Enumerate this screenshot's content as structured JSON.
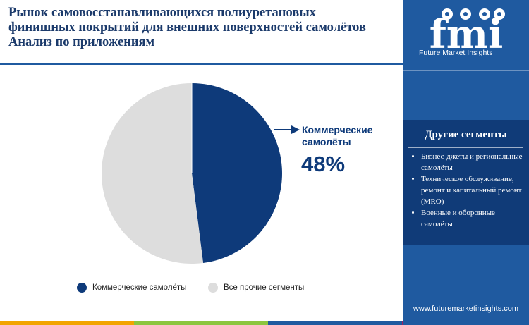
{
  "title": {
    "line1": "Рынок самовосстанавливающихся полиуретановых",
    "line2": "финишных покрытий для внешних поверхностей самолётов",
    "line3": "Анализ по приложениям"
  },
  "chart_data": {
    "type": "pie",
    "slices": [
      {
        "name": "Коммерческие самолёты",
        "value": 48,
        "color": "#0e3a7a"
      },
      {
        "name": "Все прочие сегменты",
        "value": 52,
        "color": "#dddddd"
      }
    ],
    "callout": {
      "label_line1": "Коммерческие",
      "label_line2": "самолёты",
      "value": "48%"
    },
    "legend_position": "bottom"
  },
  "legend": [
    {
      "label": "Коммерческие самолёты",
      "color": "#0e3a7a"
    },
    {
      "label": "Все прочие сегменты",
      "color": "#dddddd"
    }
  ],
  "sidebar": {
    "logo_text": "fmi",
    "tagline": "Future Market Insights",
    "other_segments_title": "Другие сегменты",
    "other_segments": [
      "Бизнес-джеты и региональные самолёты",
      "Техническое обслуживание, ремонт и капитальный ремонт (MRO)",
      "Военные и оборонные самолёты"
    ],
    "website": "www.futuremarketinsights.com"
  },
  "colors": {
    "sidebar": "#1f5aa0",
    "sidebar_box": "#103b78",
    "title": "#1b3a6b",
    "bottom_bar": [
      "#f2a400",
      "#8cc63f",
      "#1f5aa0",
      "#9e1f63"
    ]
  }
}
